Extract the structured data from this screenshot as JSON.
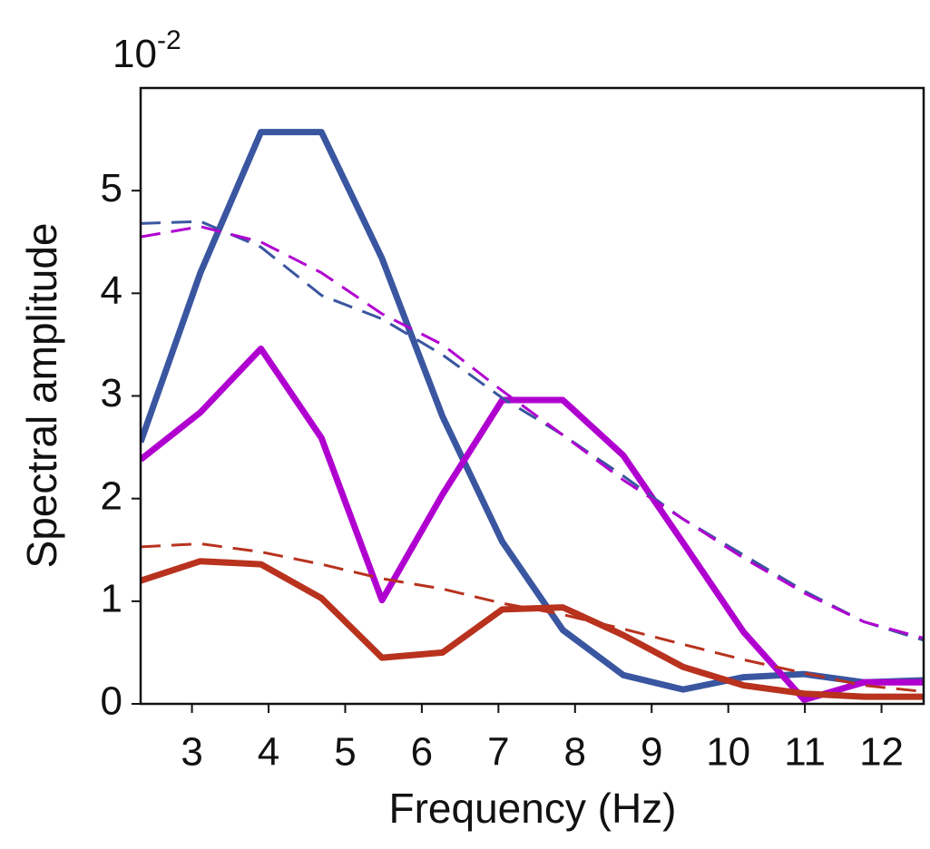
{
  "chart_data": {
    "type": "line",
    "y_label": "Spectral amplitude",
    "x_label": "Frequency (Hz)",
    "y_multiplier": {
      "base": "10",
      "exponent": "-2"
    },
    "x": [
      2.33,
      3.11,
      3.9,
      4.69,
      5.48,
      6.27,
      7.05,
      7.84,
      8.63,
      9.41,
      10.2,
      10.99,
      11.77,
      12.55
    ],
    "series": [
      {
        "color": "#3a56a0",
        "dashed": false,
        "values": [
          2.55,
          4.2,
          5.57,
          5.57,
          4.34,
          2.8,
          1.58,
          0.72,
          0.28,
          0.14,
          0.26,
          0.29,
          0.21,
          0.23
        ]
      },
      {
        "color": "#b000d0",
        "dashed": false,
        "values": [
          2.38,
          2.84,
          3.46,
          2.59,
          1.01,
          2.04,
          2.96,
          2.96,
          2.42,
          1.57,
          0.7,
          0.04,
          0.21,
          0.21
        ]
      },
      {
        "color": "#b8321e",
        "dashed": false,
        "values": [
          1.2,
          1.39,
          1.36,
          1.03,
          0.45,
          0.5,
          0.92,
          0.94,
          0.67,
          0.36,
          0.18,
          0.1,
          0.07,
          0.07
        ]
      },
      {
        "color": "#3a56a0",
        "dashed": true,
        "values": [
          4.68,
          4.7,
          4.45,
          3.98,
          3.75,
          3.4,
          2.98,
          2.62,
          2.22,
          1.8,
          1.45,
          1.1,
          0.8,
          0.62
        ]
      },
      {
        "color": "#b000d0",
        "dashed": true,
        "values": [
          4.55,
          4.65,
          4.5,
          4.2,
          3.8,
          3.5,
          3.05,
          2.62,
          2.18,
          1.8,
          1.42,
          1.08,
          0.8,
          0.64
        ]
      },
      {
        "color": "#b8321e",
        "dashed": true,
        "values": [
          1.53,
          1.56,
          1.48,
          1.36,
          1.22,
          1.12,
          0.98,
          0.87,
          0.73,
          0.58,
          0.43,
          0.3,
          0.18,
          0.12
        ]
      }
    ],
    "xlim": [
      2.33,
      12.55
    ],
    "xticks": [
      3,
      4,
      5,
      6,
      7,
      8,
      9,
      10,
      11,
      12
    ],
    "ylim": [
      0,
      6
    ],
    "yticks": [
      0,
      1,
      2,
      3,
      4,
      5
    ]
  }
}
